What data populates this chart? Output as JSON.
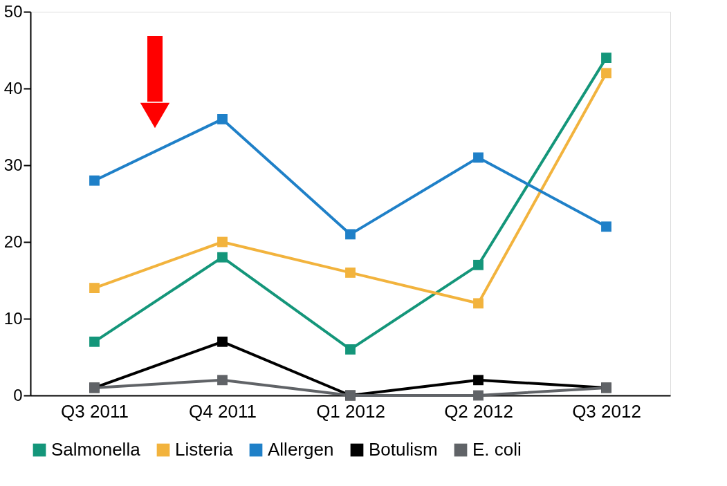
{
  "chart_data": {
    "type": "line",
    "categories": [
      "Q3 2011",
      "Q4 2011",
      "Q1 2012",
      "Q2 2012",
      "Q3 2012"
    ],
    "series": [
      {
        "name": "Salmonella",
        "color": "#14967a",
        "values": [
          7,
          18,
          6,
          17,
          44
        ]
      },
      {
        "name": "Listeria",
        "color": "#f2b33d",
        "values": [
          14,
          20,
          16,
          12,
          42
        ]
      },
      {
        "name": "Allergen",
        "color": "#1f80c8",
        "values": [
          28,
          36,
          21,
          31,
          22
        ]
      },
      {
        "name": "Botulism",
        "color": "#000000",
        "values": [
          1,
          7,
          0,
          2,
          1
        ]
      },
      {
        "name": "E. coli",
        "color": "#606367",
        "values": [
          1,
          2,
          0,
          0,
          1
        ]
      }
    ],
    "ylim": [
      0,
      50
    ],
    "yticks": [
      0,
      10,
      20,
      30,
      40,
      50
    ],
    "grid": false,
    "legend": "bottom",
    "marker": "square",
    "line_style": "solid"
  }
}
